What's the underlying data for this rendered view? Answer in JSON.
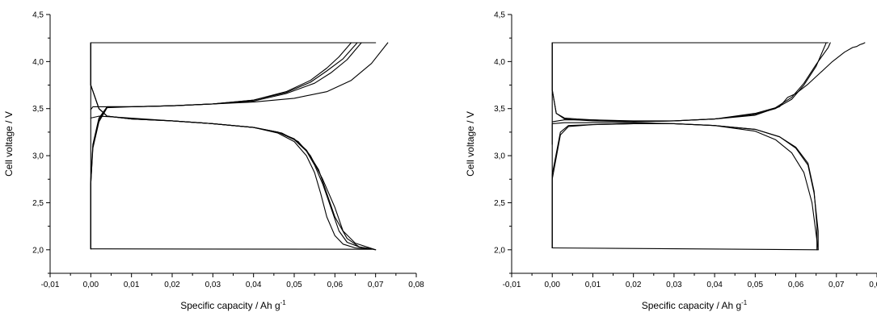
{
  "chart_data": [
    {
      "type": "line",
      "xlabel": "Specific capacity / Ah g",
      "xlabel_sup": "-1",
      "ylabel": "Cell voltage / V",
      "xlim": [
        -0.01,
        0.08
      ],
      "ylim": [
        1.75,
        4.5
      ],
      "xticks": [
        "-0,01",
        "0,00",
        "0,01",
        "0,02",
        "0,03",
        "0,04",
        "0,05",
        "0,06",
        "0,07",
        "0,08"
      ],
      "xtick_values": [
        -0.01,
        0.0,
        0.01,
        0.02,
        0.03,
        0.04,
        0.05,
        0.06,
        0.07,
        0.08
      ],
      "yticks": [
        "2,0",
        "2,5",
        "3,0",
        "3,5",
        "4,0",
        "4,5"
      ],
      "ytick_values": [
        2.0,
        2.5,
        3.0,
        3.5,
        4.0,
        4.5
      ],
      "series": [
        {
          "x": [
            0.0,
            0.0,
            0.0005,
            0.002,
            0.004,
            0.01,
            0.02,
            0.03,
            0.04,
            0.048,
            0.054,
            0.058,
            0.062,
            0.0655,
            0.0655
          ],
          "y": [
            2.01,
            2.7,
            3.1,
            3.38,
            3.52,
            3.52,
            3.53,
            3.55,
            3.59,
            3.67,
            3.78,
            3.9,
            4.03,
            4.2,
            4.2
          ]
        },
        {
          "x": [
            0.0,
            0.0,
            0.0005,
            0.002,
            0.004,
            0.01,
            0.02,
            0.03,
            0.04,
            0.048,
            0.054,
            0.058,
            0.061,
            0.064,
            0.064
          ],
          "y": [
            2.01,
            2.75,
            3.12,
            3.4,
            3.52,
            3.52,
            3.53,
            3.55,
            3.59,
            3.68,
            3.8,
            3.93,
            4.05,
            4.2,
            4.2
          ]
        },
        {
          "x": [
            0.0,
            0.0,
            0.0005,
            0.002,
            0.004,
            0.01,
            0.02,
            0.03,
            0.04,
            0.048,
            0.055,
            0.059,
            0.063,
            0.0665,
            0.0665
          ],
          "y": [
            2.01,
            2.7,
            3.08,
            3.36,
            3.51,
            3.52,
            3.53,
            3.55,
            3.58,
            3.66,
            3.77,
            3.88,
            4.02,
            4.2,
            4.2
          ]
        },
        {
          "x": [
            0.0,
            0.0005,
            0.003,
            0.01,
            0.02,
            0.03,
            0.04,
            0.05,
            0.058,
            0.064,
            0.069,
            0.073,
            0.073
          ],
          "y": [
            3.49,
            3.52,
            3.52,
            3.52,
            3.53,
            3.55,
            3.57,
            3.61,
            3.68,
            3.8,
            3.98,
            4.2,
            4.2
          ]
        },
        {
          "x": [
            0.0,
            0.0,
            0.002,
            0.004,
            0.01,
            0.02,
            0.03,
            0.04,
            0.046,
            0.05,
            0.053,
            0.055,
            0.057,
            0.059,
            0.061,
            0.063,
            0.066,
            0.069
          ],
          "y": [
            4.2,
            3.75,
            3.5,
            3.42,
            3.39,
            3.37,
            3.34,
            3.3,
            3.25,
            3.17,
            3.05,
            2.9,
            2.7,
            2.45,
            2.2,
            2.08,
            2.03,
            2.01
          ]
        },
        {
          "x": [
            0.0,
            0.0,
            0.002,
            0.004,
            0.01,
            0.02,
            0.03,
            0.04,
            0.046,
            0.05,
            0.053,
            0.055,
            0.0565,
            0.058,
            0.06,
            0.062,
            0.065,
            0.068
          ],
          "y": [
            4.2,
            3.75,
            3.5,
            3.42,
            3.39,
            3.37,
            3.34,
            3.3,
            3.24,
            3.15,
            3.0,
            2.82,
            2.6,
            2.35,
            2.15,
            2.06,
            2.02,
            2.01
          ]
        },
        {
          "x": [
            0.0,
            0.0,
            0.002,
            0.004,
            0.01,
            0.02,
            0.03,
            0.04,
            0.046,
            0.05,
            0.053,
            0.056,
            0.058,
            0.06,
            0.063,
            0.066,
            0.07
          ],
          "y": [
            4.2,
            3.75,
            3.5,
            3.42,
            3.39,
            3.37,
            3.34,
            3.3,
            3.25,
            3.18,
            3.06,
            2.85,
            2.6,
            2.35,
            2.12,
            2.03,
            2.0
          ]
        },
        {
          "x": [
            0.0,
            0.002,
            0.006,
            0.02,
            0.03,
            0.04,
            0.047,
            0.051,
            0.054,
            0.057,
            0.06,
            0.062,
            0.065,
            0.07
          ],
          "y": [
            3.4,
            3.42,
            3.41,
            3.37,
            3.34,
            3.3,
            3.24,
            3.15,
            3.0,
            2.75,
            2.45,
            2.2,
            2.07,
            2.0
          ]
        },
        {
          "x": [
            0.0,
            0.0,
            0.07
          ],
          "y": [
            2.01,
            4.2,
            4.2
          ]
        },
        {
          "x": [
            0.0,
            0.069
          ],
          "y": [
            2.01,
            2.005
          ]
        }
      ]
    },
    {
      "type": "line",
      "xlabel": "Specific capacity / Ah g",
      "xlabel_sup": "-1",
      "ylabel": "Cell voltage / V",
      "xlim": [
        -0.01,
        0.08
      ],
      "ylim": [
        1.75,
        4.5
      ],
      "xticks": [
        "-0,01",
        "0,00",
        "0,01",
        "0,02",
        "0,03",
        "0,04",
        "0,05",
        "0,06",
        "0,07",
        "0,08"
      ],
      "xtick_values": [
        -0.01,
        0.0,
        0.01,
        0.02,
        0.03,
        0.04,
        0.05,
        0.06,
        0.07,
        0.08
      ],
      "yticks": [
        "2,0",
        "2,5",
        "3,0",
        "3,5",
        "4,0",
        "4,5"
      ],
      "ytick_values": [
        2.0,
        2.5,
        3.0,
        3.5,
        4.0,
        4.5
      ],
      "series": [
        {
          "x": [
            0.0,
            0.0,
            0.001,
            0.003,
            0.006,
            0.01,
            0.02,
            0.03,
            0.04,
            0.05,
            0.055,
            0.059,
            0.062,
            0.065,
            0.067,
            0.0675
          ],
          "y": [
            4.2,
            3.7,
            3.45,
            3.39,
            3.38,
            3.37,
            3.36,
            3.37,
            3.39,
            3.44,
            3.5,
            3.6,
            3.75,
            3.95,
            4.15,
            4.2
          ]
        },
        {
          "x": [
            0.0,
            0.0,
            0.001,
            0.003,
            0.006,
            0.01,
            0.02,
            0.03,
            0.04,
            0.05,
            0.055,
            0.059,
            0.062,
            0.065,
            0.068,
            0.0685
          ],
          "y": [
            4.2,
            3.7,
            3.45,
            3.4,
            3.39,
            3.38,
            3.36,
            3.37,
            3.39,
            3.45,
            3.51,
            3.62,
            3.77,
            3.97,
            4.15,
            4.2
          ]
        },
        {
          "x": [
            0.0,
            0.003,
            0.01,
            0.02,
            0.03,
            0.04,
            0.05,
            0.056,
            0.058,
            0.06,
            0.063,
            0.066,
            0.069,
            0.072,
            0.074,
            0.075,
            0.0758,
            0.0765,
            0.077
          ],
          "y": [
            3.36,
            3.38,
            3.38,
            3.37,
            3.37,
            3.39,
            3.43,
            3.52,
            3.62,
            3.66,
            3.76,
            3.88,
            4.0,
            4.1,
            4.15,
            4.16,
            4.18,
            4.19,
            4.2
          ]
        },
        {
          "x": [
            0.0,
            0.0,
            0.002,
            0.004,
            0.01,
            0.02,
            0.03,
            0.04,
            0.05,
            0.056,
            0.06,
            0.063,
            0.0645,
            0.0655,
            0.0655
          ],
          "y": [
            2.02,
            2.8,
            3.25,
            3.32,
            3.33,
            3.34,
            3.34,
            3.32,
            3.28,
            3.2,
            3.08,
            2.9,
            2.6,
            2.2,
            2.0
          ]
        },
        {
          "x": [
            0.0,
            0.0,
            0.002,
            0.004,
            0.01,
            0.02,
            0.03,
            0.04,
            0.05,
            0.056,
            0.06,
            0.063,
            0.0645,
            0.0652,
            0.0652
          ],
          "y": [
            2.02,
            2.75,
            3.22,
            3.31,
            3.33,
            3.34,
            3.34,
            3.32,
            3.28,
            3.2,
            3.09,
            2.92,
            2.62,
            2.25,
            2.0
          ]
        },
        {
          "x": [
            0.0,
            0.0,
            0.003,
            0.01,
            0.02,
            0.03,
            0.04,
            0.05,
            0.055,
            0.059,
            0.062,
            0.064,
            0.0655
          ],
          "y": [
            3.12,
            3.34,
            3.35,
            3.35,
            3.35,
            3.34,
            3.32,
            3.26,
            3.17,
            3.03,
            2.82,
            2.5,
            2.0
          ]
        },
        {
          "x": [
            0.0,
            0.0,
            0.068
          ],
          "y": [
            2.02,
            4.2,
            4.2
          ]
        },
        {
          "x": [
            0.0,
            0.0655
          ],
          "y": [
            2.02,
            2.0
          ]
        }
      ]
    }
  ]
}
